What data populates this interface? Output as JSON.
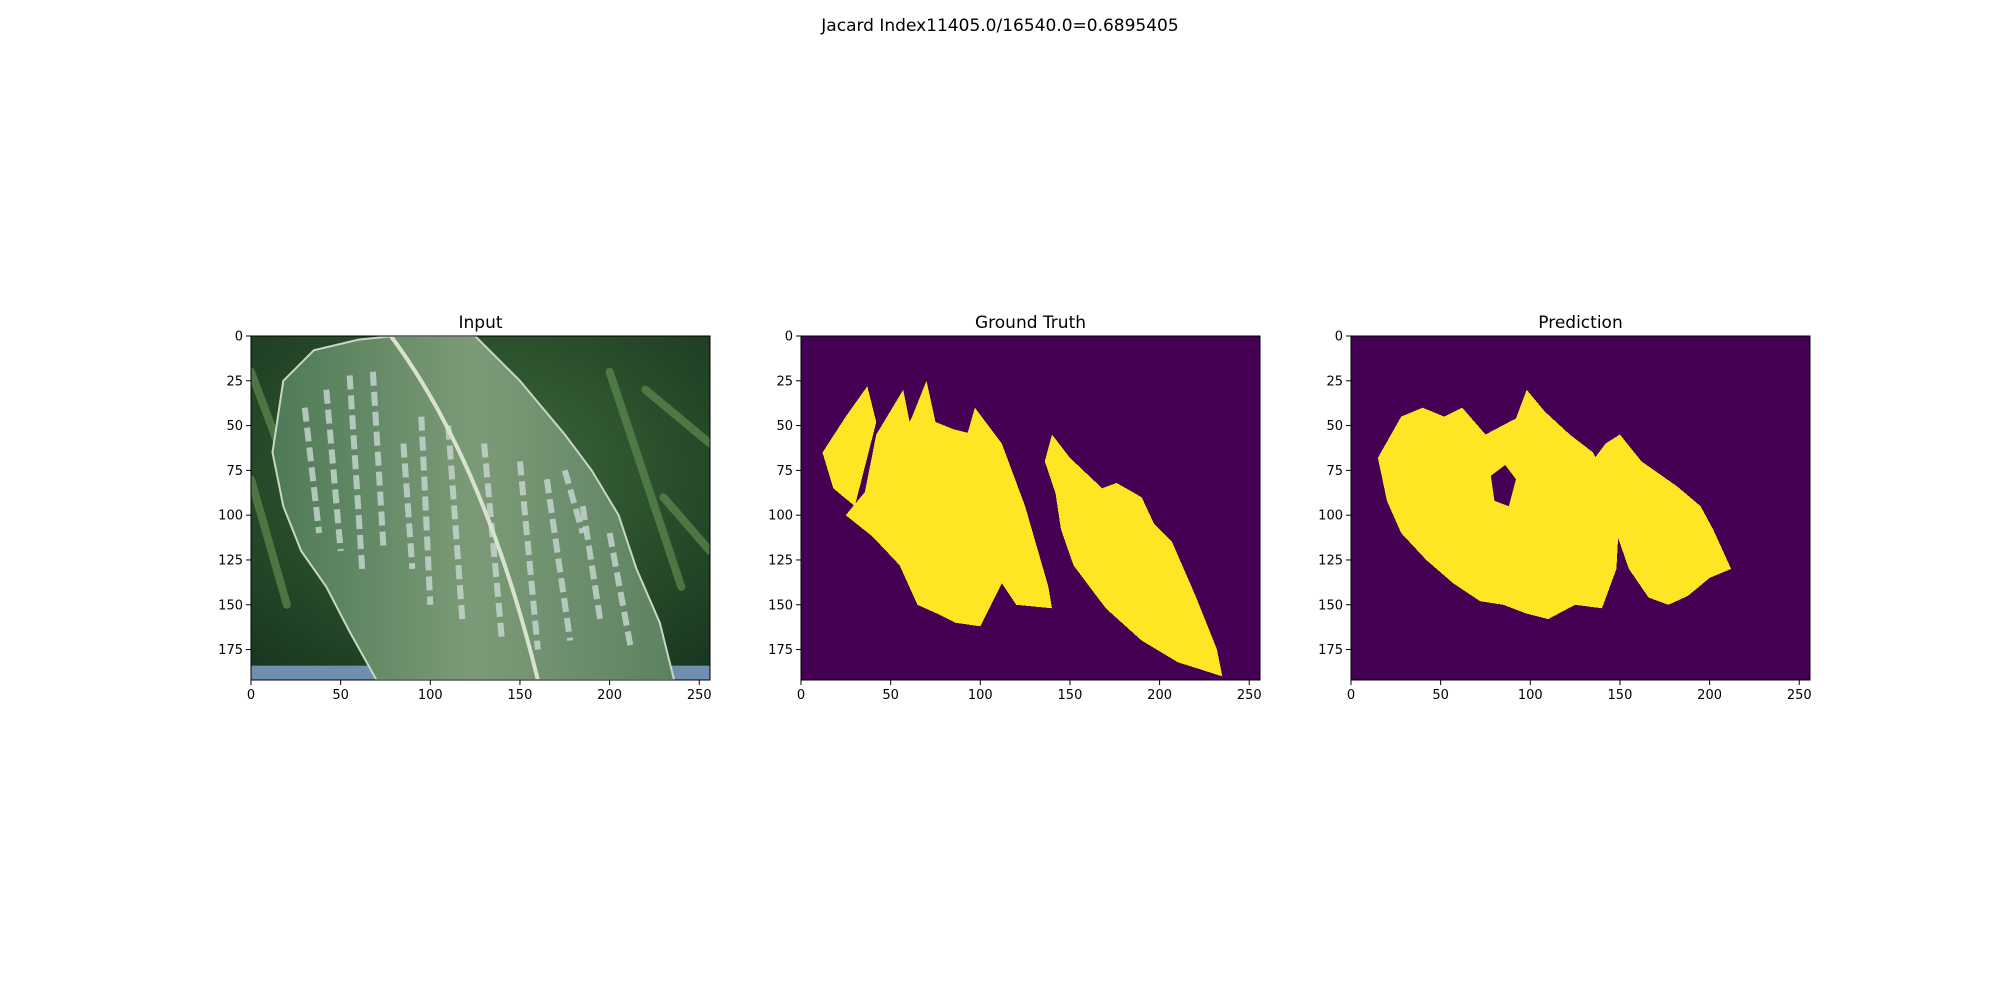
{
  "title": "Jacard Index11405.0/16540.0=0.6895405",
  "colors": {
    "mask_background": "#440154",
    "mask_foreground": "#fde725",
    "leaf_green": "#6a8f6b",
    "leaf_lesion": "#c9d8d3"
  },
  "chart_data": [
    {
      "type": "image",
      "title": "Input",
      "image_size": [
        256,
        192
      ],
      "xlim": [
        0,
        256
      ],
      "ylim": [
        192,
        0
      ],
      "xticks": [
        0,
        50,
        100,
        150,
        200,
        250
      ],
      "yticks": [
        0,
        25,
        50,
        75,
        100,
        125,
        150,
        175
      ],
      "grid": false,
      "content": "photo-leaf"
    },
    {
      "type": "heatmap",
      "title": "Ground Truth",
      "image_size": [
        256,
        192
      ],
      "xlim": [
        0,
        256
      ],
      "ylim": [
        192,
        0
      ],
      "xticks": [
        0,
        50,
        100,
        150,
        200,
        250
      ],
      "yticks": [
        0,
        25,
        50,
        75,
        100,
        125,
        150,
        175
      ],
      "grid": false,
      "classes": [
        0,
        1
      ],
      "regions": [
        [
          [
            12,
            65
          ],
          [
            25,
            45
          ],
          [
            37,
            28
          ],
          [
            42,
            48
          ],
          [
            30,
            95
          ],
          [
            18,
            85
          ]
        ],
        [
          [
            33,
            100
          ],
          [
            42,
            55
          ],
          [
            57,
            30
          ],
          [
            62,
            55
          ],
          [
            55,
            78
          ],
          [
            52,
            100
          ]
        ],
        [
          [
            48,
            72
          ],
          [
            62,
            45
          ],
          [
            70,
            25
          ],
          [
            75,
            48
          ],
          [
            85,
            52
          ],
          [
            93,
            54
          ],
          [
            97,
            40
          ],
          [
            112,
            60
          ],
          [
            125,
            95
          ],
          [
            138,
            140
          ],
          [
            140,
            152
          ],
          [
            120,
            150
          ],
          [
            112,
            138
          ],
          [
            100,
            162
          ],
          [
            86,
            160
          ],
          [
            76,
            155
          ],
          [
            65,
            150
          ],
          [
            55,
            128
          ],
          [
            40,
            112
          ],
          [
            25,
            100
          ]
        ],
        [
          [
            140,
            55
          ],
          [
            150,
            68
          ],
          [
            168,
            85
          ],
          [
            176,
            82
          ],
          [
            190,
            90
          ],
          [
            197,
            105
          ],
          [
            207,
            115
          ],
          [
            220,
            145
          ],
          [
            232,
            175
          ],
          [
            235,
            190
          ],
          [
            210,
            182
          ],
          [
            190,
            170
          ],
          [
            170,
            152
          ],
          [
            152,
            128
          ],
          [
            145,
            108
          ],
          [
            142,
            88
          ],
          [
            136,
            70
          ]
        ]
      ]
    },
    {
      "type": "heatmap",
      "title": "Prediction",
      "image_size": [
        256,
        192
      ],
      "xlim": [
        0,
        256
      ],
      "ylim": [
        192,
        0
      ],
      "xticks": [
        0,
        50,
        100,
        150,
        200,
        250
      ],
      "yticks": [
        0,
        25,
        50,
        75,
        100,
        125,
        150,
        175
      ],
      "grid": false,
      "classes": [
        0,
        1
      ],
      "regions": [
        [
          [
            15,
            68
          ],
          [
            28,
            45
          ],
          [
            40,
            40
          ],
          [
            52,
            45
          ],
          [
            62,
            40
          ],
          [
            75,
            55
          ],
          [
            92,
            46
          ],
          [
            98,
            30
          ],
          [
            108,
            42
          ],
          [
            122,
            55
          ],
          [
            135,
            65
          ],
          [
            150,
            95
          ],
          [
            148,
            130
          ],
          [
            140,
            152
          ],
          [
            125,
            150
          ],
          [
            110,
            158
          ],
          [
            98,
            155
          ],
          [
            85,
            150
          ],
          [
            72,
            148
          ],
          [
            57,
            138
          ],
          [
            42,
            125
          ],
          [
            28,
            110
          ],
          [
            20,
            92
          ]
        ],
        [
          [
            133,
            72
          ],
          [
            142,
            60
          ],
          [
            150,
            55
          ],
          [
            162,
            70
          ],
          [
            182,
            84
          ],
          [
            195,
            95
          ],
          [
            202,
            108
          ],
          [
            212,
            130
          ],
          [
            200,
            135
          ],
          [
            188,
            145
          ],
          [
            177,
            150
          ],
          [
            166,
            146
          ],
          [
            155,
            130
          ],
          [
            148,
            110
          ],
          [
            142,
            90
          ]
        ]
      ],
      "holes": [
        [
          [
            78,
            78
          ],
          [
            86,
            72
          ],
          [
            92,
            80
          ],
          [
            88,
            95
          ],
          [
            80,
            92
          ]
        ]
      ]
    }
  ]
}
